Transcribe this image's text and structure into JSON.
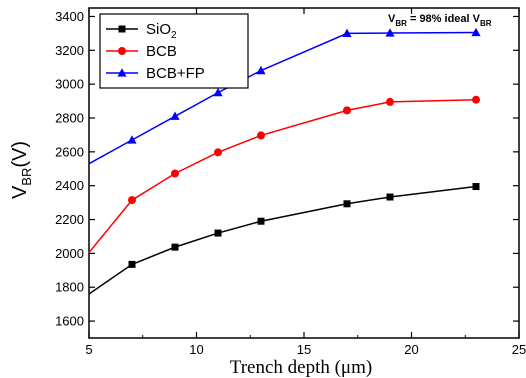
{
  "chart_data": {
    "type": "line",
    "title": "",
    "xlabel": "Trench depth (μm)",
    "ylabel": {
      "main": "V",
      "sub": "BR",
      "suffix": "(V)"
    },
    "xlim": [
      5,
      25
    ],
    "ylim": [
      1500,
      3450
    ],
    "x_ticks": [
      5,
      10,
      15,
      20,
      25
    ],
    "y_ticks": [
      1600,
      1800,
      2000,
      2200,
      2400,
      2600,
      2800,
      3000,
      3200,
      3400
    ],
    "grid": false,
    "legend_position": "top-left",
    "annotation": {
      "main": "V",
      "sub": "BR",
      "text": " = 98% ideal V",
      "sub2": "BR"
    },
    "series": [
      {
        "name": "SiO2",
        "name_main": "SiO",
        "name_sub": "2",
        "color": "#000000",
        "marker": "square",
        "x": [
          5,
          7,
          9,
          11,
          13,
          17,
          19,
          23
        ],
        "y": [
          1760,
          1935,
          2037,
          2120,
          2190,
          2293,
          2333,
          2395
        ]
      },
      {
        "name": "BCB",
        "color": "#ff0000",
        "marker": "circle",
        "x": [
          5,
          7,
          9,
          11,
          13,
          17,
          19,
          23
        ],
        "y": [
          2005,
          2315,
          2472,
          2597,
          2697,
          2845,
          2895,
          2908
        ]
      },
      {
        "name": "BCB+FP",
        "color": "#0000ff",
        "marker": "triangle",
        "x": [
          5,
          7,
          9,
          11,
          13,
          17,
          19,
          23
        ],
        "y": [
          2530,
          2670,
          2810,
          2950,
          3080,
          3300,
          3302,
          3305
        ]
      }
    ]
  }
}
